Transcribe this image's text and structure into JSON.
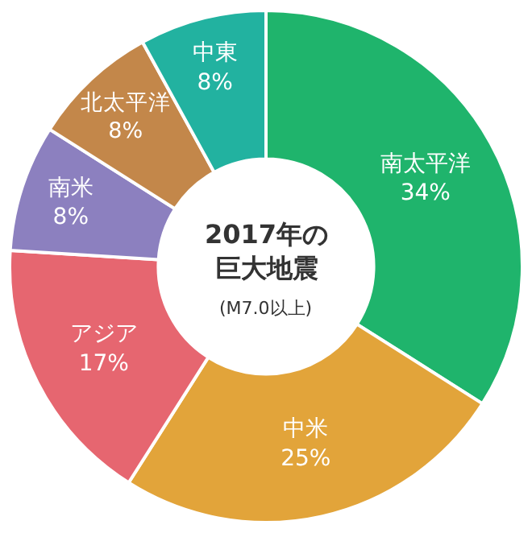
{
  "chart_data": {
    "type": "donut",
    "title": "2017年の巨大地震",
    "subtitle": "(M7.0以上)",
    "categories": [
      "南太平洋",
      "中米",
      "アジア",
      "南米",
      "北太平洋",
      "中東"
    ],
    "values": [
      34,
      25,
      17,
      8,
      8,
      8
    ],
    "value_labels": [
      "34%",
      "25%",
      "17%",
      "8%",
      "8%",
      "8%"
    ],
    "colors": [
      "#1fb46c",
      "#e2a43a",
      "#e66670",
      "#8c80bf",
      "#c3874a",
      "#22b2a0"
    ],
    "legend": false
  }
}
